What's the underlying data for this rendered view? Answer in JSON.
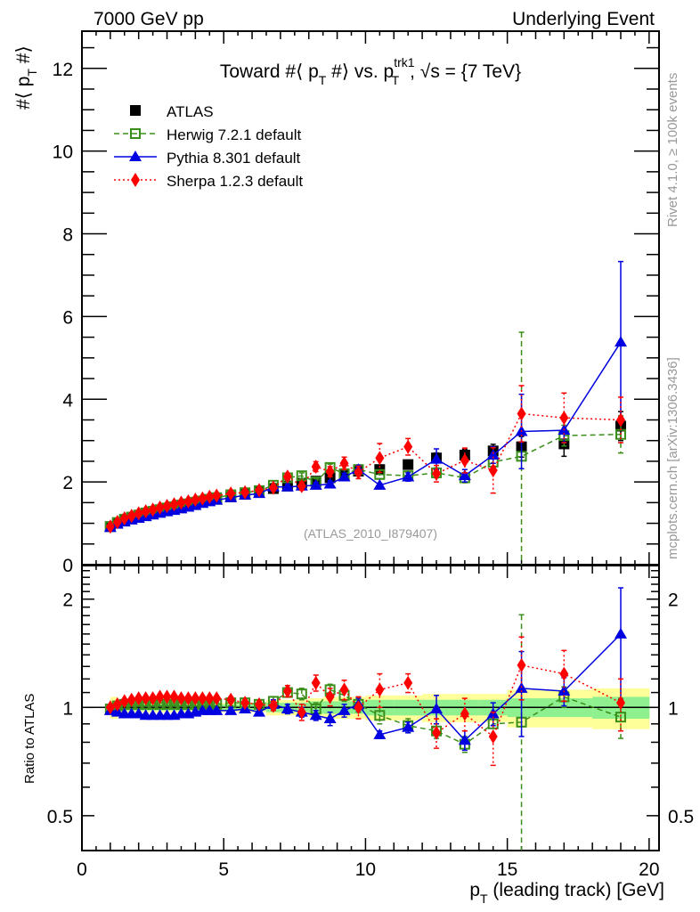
{
  "header": {
    "left": "7000 GeV pp",
    "right": "Underlying Event"
  },
  "side_text": {
    "rivet": "Rivet 4.1.0, ≥ 100k events",
    "mcplots": "mcplots.cern.ch [arXiv:1306.3436]"
  },
  "chart_data": [
    {
      "type": "scatter",
      "panel": "main",
      "title": "Toward #⟨ p_T #⟩ vs. p_T^trk1, √s = {7 TeV}",
      "title_parts": {
        "a": "Toward #⟨ p",
        "a_sub": "T",
        "b": " #⟩ vs. p",
        "b_sup": "trk1",
        "b_sub": "T",
        "c": ", √s = {7 TeV}"
      },
      "ylabel": "#⟨ p_T #⟩",
      "ylabel_parts": {
        "a": "#⟨ p",
        "sub": "T",
        "b": " #⟩"
      },
      "watermark": "(ATLAS_2010_I879407)",
      "xlim": [
        0,
        20.35
      ],
      "ylim": [
        0,
        12.9
      ],
      "yticks": [
        0,
        2,
        4,
        6,
        8,
        10,
        12
      ],
      "ytick_labels": [
        "0",
        "2",
        "4",
        "6",
        "8",
        "10",
        "12"
      ],
      "legend": [
        "ATLAS",
        "Herwig 7.2.1 default",
        "Pythia 8.301 default",
        "Sherpa 1.2.3 default"
      ],
      "legend_position": "top-left",
      "x": [
        1.0,
        1.25,
        1.5,
        1.75,
        2.0,
        2.25,
        2.5,
        2.75,
        3.0,
        3.25,
        3.5,
        3.75,
        4.0,
        4.25,
        4.5,
        4.75,
        5.25,
        5.75,
        6.25,
        6.75,
        7.25,
        7.75,
        8.25,
        8.75,
        9.25,
        9.75,
        10.5,
        11.5,
        12.5,
        13.5,
        14.5,
        15.5,
        17.0,
        19.0
      ],
      "series": [
        {
          "name": "ATLAS",
          "color": "#000000",
          "marker": "square-filled",
          "values": [
            0.92,
            1.0,
            1.07,
            1.12,
            1.17,
            1.22,
            1.26,
            1.3,
            1.34,
            1.37,
            1.41,
            1.44,
            1.48,
            1.51,
            1.55,
            1.58,
            1.64,
            1.7,
            1.76,
            1.84,
            1.9,
            1.97,
            2.02,
            2.1,
            2.17,
            2.26,
            2.3,
            2.42,
            2.58,
            2.65,
            2.75,
            2.85,
            2.92,
            3.35
          ],
          "errors": [
            0.02,
            0.02,
            0.02,
            0.02,
            0.02,
            0.02,
            0.02,
            0.02,
            0.02,
            0.02,
            0.02,
            0.02,
            0.02,
            0.02,
            0.02,
            0.02,
            0.03,
            0.03,
            0.03,
            0.04,
            0.04,
            0.05,
            0.05,
            0.06,
            0.06,
            0.07,
            0.08,
            0.1,
            0.12,
            0.14,
            0.16,
            0.25,
            0.3,
            0.35
          ]
        },
        {
          "name": "Herwig 7.2.1 default",
          "color": "#3a8f1a",
          "marker": "square-open",
          "dash": "6,4",
          "values": [
            0.92,
            1.02,
            1.1,
            1.15,
            1.2,
            1.25,
            1.29,
            1.33,
            1.37,
            1.4,
            1.44,
            1.47,
            1.51,
            1.54,
            1.58,
            1.62,
            1.69,
            1.74,
            1.79,
            1.92,
            2.1,
            2.15,
            2.0,
            2.35,
            2.2,
            2.3,
            2.18,
            2.15,
            2.22,
            2.1,
            2.48,
            2.62,
            3.12,
            3.15
          ],
          "errors": [
            0.01,
            0.01,
            0.01,
            0.01,
            0.01,
            0.01,
            0.01,
            0.01,
            0.01,
            0.01,
            0.01,
            0.01,
            0.01,
            0.02,
            0.02,
            0.02,
            0.03,
            0.03,
            0.04,
            0.05,
            0.06,
            0.07,
            0.08,
            0.08,
            0.09,
            0.1,
            0.1,
            0.1,
            0.12,
            0.12,
            0.15,
            3.0,
            0.25,
            0.45
          ]
        },
        {
          "name": "Pythia 8.301 default",
          "color": "#0000e0",
          "marker": "triangle-filled",
          "dash": "",
          "values": [
            0.9,
            0.98,
            1.03,
            1.08,
            1.12,
            1.16,
            1.2,
            1.24,
            1.28,
            1.31,
            1.35,
            1.39,
            1.43,
            1.48,
            1.52,
            1.56,
            1.62,
            1.68,
            1.72,
            1.88,
            1.88,
            1.9,
            1.92,
            1.95,
            2.12,
            2.3,
            1.92,
            2.12,
            2.55,
            2.15,
            2.65,
            3.22,
            3.25,
            5.38
          ],
          "errors": [
            0.01,
            0.01,
            0.01,
            0.01,
            0.01,
            0.01,
            0.01,
            0.01,
            0.01,
            0.01,
            0.01,
            0.01,
            0.01,
            0.02,
            0.02,
            0.02,
            0.03,
            0.03,
            0.04,
            0.05,
            0.06,
            0.06,
            0.07,
            0.08,
            0.09,
            0.1,
            0.05,
            0.1,
            0.25,
            0.15,
            0.2,
            0.9,
            0.3,
            1.95
          ]
        },
        {
          "name": "Sherpa 1.2.3 default",
          "color": "#ff0000",
          "marker": "diamond-filled",
          "dash": "2,3",
          "values": [
            0.92,
            1.03,
            1.12,
            1.18,
            1.24,
            1.29,
            1.33,
            1.38,
            1.42,
            1.46,
            1.5,
            1.53,
            1.57,
            1.6,
            1.64,
            1.67,
            1.72,
            1.75,
            1.8,
            1.86,
            2.13,
            1.9,
            2.37,
            2.25,
            2.45,
            2.23,
            2.58,
            2.85,
            2.2,
            2.52,
            2.28,
            3.65,
            3.55,
            3.5
          ],
          "errors": [
            0.01,
            0.01,
            0.01,
            0.01,
            0.01,
            0.01,
            0.01,
            0.01,
            0.01,
            0.01,
            0.01,
            0.01,
            0.01,
            0.02,
            0.02,
            0.02,
            0.03,
            0.03,
            0.04,
            0.05,
            0.08,
            0.1,
            0.12,
            0.12,
            0.15,
            0.15,
            0.35,
            0.2,
            0.2,
            0.3,
            0.55,
            0.68,
            0.6,
            0.55
          ]
        }
      ]
    },
    {
      "type": "scatter",
      "panel": "ratio",
      "ylabel": "Ratio to ATLAS",
      "xlabel": "p_T (leading track) [GeV]",
      "xlabel_parts": {
        "a": "p",
        "sub": "T",
        "b": " (leading track) [GeV]"
      },
      "yscale": "log",
      "xlim": [
        0,
        20.35
      ],
      "ylim": [
        0.4,
        2.48
      ],
      "xticks": [
        0,
        5,
        10,
        15,
        20
      ],
      "xtick_labels": [
        "0",
        "5",
        "10",
        "15",
        "20"
      ],
      "yticks": [
        0.5,
        1,
        2
      ],
      "ytick_labels": [
        "0.5",
        "1",
        "2"
      ],
      "reference_line": 1,
      "bands": {
        "x_edges": [
          1.0,
          1.25,
          1.5,
          1.75,
          2.0,
          2.25,
          2.5,
          2.75,
          3.0,
          3.25,
          3.5,
          3.75,
          4.0,
          4.25,
          4.5,
          4.75,
          5.0,
          5.5,
          6.0,
          6.5,
          7.0,
          7.5,
          8.0,
          8.5,
          9.0,
          9.5,
          10.0,
          11.0,
          12.0,
          13.0,
          14.0,
          15.0,
          16.0,
          18.0,
          20.0
        ],
        "stat_halfwidth": [
          0.03,
          0.02,
          0.02,
          0.02,
          0.02,
          0.02,
          0.02,
          0.02,
          0.02,
          0.02,
          0.02,
          0.02,
          0.02,
          0.02,
          0.02,
          0.02,
          0.02,
          0.02,
          0.02,
          0.03,
          0.03,
          0.03,
          0.04,
          0.04,
          0.04,
          0.04,
          0.05,
          0.05,
          0.05,
          0.05,
          0.05,
          0.06,
          0.06,
          0.07
        ],
        "total_halfwidth": [
          0.07,
          0.04,
          0.03,
          0.03,
          0.03,
          0.03,
          0.03,
          0.03,
          0.03,
          0.03,
          0.03,
          0.03,
          0.03,
          0.03,
          0.03,
          0.03,
          0.03,
          0.03,
          0.03,
          0.05,
          0.05,
          0.05,
          0.06,
          0.07,
          0.07,
          0.07,
          0.08,
          0.08,
          0.09,
          0.09,
          0.09,
          0.12,
          0.12,
          0.13
        ],
        "stat_color": "#8ff08f",
        "total_color": "#ffff99"
      },
      "x": [
        1.0,
        1.25,
        1.5,
        1.75,
        2.0,
        2.25,
        2.5,
        2.75,
        3.0,
        3.25,
        3.5,
        3.75,
        4.0,
        4.25,
        4.5,
        4.75,
        5.25,
        5.75,
        6.25,
        6.75,
        7.25,
        7.75,
        8.25,
        8.75,
        9.25,
        9.75,
        10.5,
        11.5,
        12.5,
        13.5,
        14.5,
        15.5,
        17.0,
        19.0
      ],
      "series": [
        {
          "name": "Herwig 7.2.1 default",
          "color": "#3a8f1a",
          "marker": "square-open",
          "dash": "6,4",
          "values": [
            0.99,
            1.01,
            1.02,
            1.02,
            1.02,
            1.02,
            1.02,
            1.02,
            1.02,
            1.02,
            1.02,
            1.02,
            1.02,
            1.02,
            1.02,
            1.02,
            1.03,
            1.03,
            1.02,
            1.04,
            1.1,
            1.09,
            0.99,
            1.12,
            1.08,
            1.02,
            0.95,
            0.89,
            0.86,
            0.79,
            0.9,
            0.91,
            1.07,
            0.94
          ],
          "errors": [
            0.01,
            0.01,
            0.01,
            0.01,
            0.01,
            0.01,
            0.01,
            0.01,
            0.01,
            0.01,
            0.01,
            0.01,
            0.01,
            0.01,
            0.01,
            0.01,
            0.02,
            0.02,
            0.02,
            0.03,
            0.03,
            0.04,
            0.04,
            0.04,
            0.04,
            0.05,
            0.05,
            0.04,
            0.04,
            0.04,
            0.06,
            0.9,
            0.07,
            0.12
          ]
        },
        {
          "name": "Pythia 8.301 default",
          "color": "#0000e0",
          "marker": "triangle-filled",
          "dash": "",
          "values": [
            0.98,
            0.97,
            0.96,
            0.96,
            0.96,
            0.95,
            0.95,
            0.95,
            0.95,
            0.95,
            0.96,
            0.96,
            0.97,
            0.98,
            0.98,
            0.98,
            0.98,
            0.99,
            0.97,
            1.02,
            0.99,
            0.97,
            0.95,
            0.93,
            0.98,
            1.02,
            0.84,
            0.88,
            0.99,
            0.81,
            0.96,
            1.13,
            1.11,
            1.6
          ],
          "errors": [
            0.01,
            0.01,
            0.01,
            0.01,
            0.01,
            0.01,
            0.01,
            0.01,
            0.01,
            0.01,
            0.01,
            0.01,
            0.01,
            0.01,
            0.01,
            0.01,
            0.02,
            0.02,
            0.02,
            0.03,
            0.03,
            0.03,
            0.03,
            0.04,
            0.04,
            0.04,
            0.02,
            0.03,
            0.09,
            0.05,
            0.07,
            0.3,
            0.1,
            0.55
          ]
        },
        {
          "name": "Sherpa 1.2.3 default",
          "color": "#ff0000",
          "marker": "diamond-filled",
          "dash": "2,3",
          "values": [
            1.0,
            1.02,
            1.04,
            1.05,
            1.06,
            1.06,
            1.06,
            1.07,
            1.07,
            1.07,
            1.06,
            1.06,
            1.06,
            1.06,
            1.06,
            1.06,
            1.05,
            1.03,
            1.02,
            1.01,
            1.11,
            0.97,
            1.17,
            1.07,
            1.12,
            1.0,
            1.12,
            1.17,
            0.85,
            0.96,
            0.83,
            1.31,
            1.24,
            1.03
          ],
          "errors": [
            0.01,
            0.01,
            0.01,
            0.01,
            0.01,
            0.01,
            0.01,
            0.01,
            0.01,
            0.01,
            0.01,
            0.01,
            0.01,
            0.01,
            0.01,
            0.01,
            0.02,
            0.02,
            0.02,
            0.03,
            0.04,
            0.05,
            0.06,
            0.06,
            0.07,
            0.07,
            0.12,
            0.07,
            0.08,
            0.1,
            0.14,
            0.26,
            0.2,
            0.17
          ]
        }
      ]
    }
  ]
}
